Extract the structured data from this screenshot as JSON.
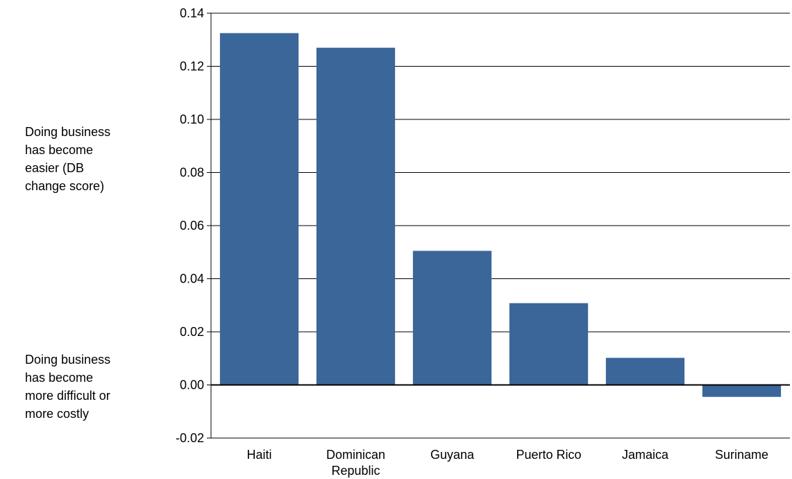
{
  "annotations": {
    "positive": "Doing business has become easier (DB change score)",
    "negative": "Doing business has become more difficult or more costly"
  },
  "chart_data": {
    "type": "bar",
    "categories": [
      "Haiti",
      "Dominican Republic",
      "Guyana",
      "Puerto Rico",
      "Jamaica",
      "Suriname"
    ],
    "values": [
      0.1325,
      0.127,
      0.0505,
      0.0308,
      0.0102,
      -0.0045
    ],
    "ylim": [
      -0.02,
      0.14
    ],
    "yticks": [
      "0.14",
      "0.12",
      "0.10",
      "0.08",
      "0.06",
      "0.04",
      "0.02",
      "0.00",
      "-0.02"
    ],
    "grid": true,
    "bar_color": "#3b6699"
  }
}
